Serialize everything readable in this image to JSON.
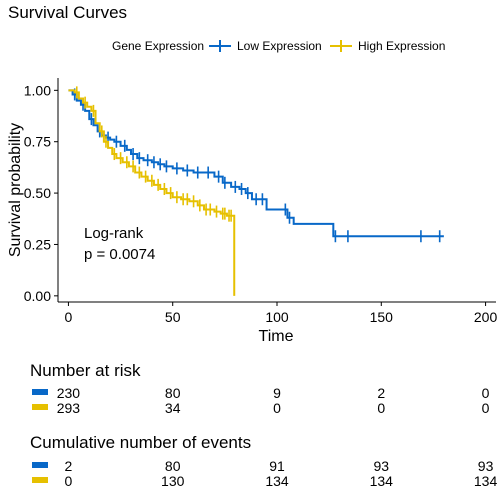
{
  "chart_data": {
    "type": "line",
    "title": "Survival Curves",
    "xlabel": "Time",
    "ylabel": "Survival probability",
    "xlim": [
      -5,
      205
    ],
    "ylim": [
      -0.03,
      1.06
    ],
    "x_ticks": [
      0,
      50,
      100,
      150,
      200
    ],
    "y_ticks": [
      0.0,
      0.25,
      0.5,
      0.75,
      1.0
    ],
    "x_tick_labels": [
      "0",
      "50",
      "100",
      "150",
      "200"
    ],
    "y_tick_labels": [
      "0.00",
      "0.25",
      "0.50",
      "0.75",
      "1.00"
    ],
    "grid": false,
    "legend_placement": "top",
    "legend_title": "Gene Expression",
    "annotation": [
      "Log-rank",
      "p = 0.0074"
    ],
    "series": [
      {
        "name": "Low Expression",
        "color": "#0868c8",
        "steps": [
          [
            0,
            1.0
          ],
          [
            2,
            0.98
          ],
          [
            4,
            0.95
          ],
          [
            6,
            0.93
          ],
          [
            8,
            0.9
          ],
          [
            10,
            0.86
          ],
          [
            12,
            0.83
          ],
          [
            14,
            0.8
          ],
          [
            16,
            0.78
          ],
          [
            18,
            0.77
          ],
          [
            20,
            0.76
          ],
          [
            22,
            0.75
          ],
          [
            25,
            0.73
          ],
          [
            28,
            0.71
          ],
          [
            30,
            0.69
          ],
          [
            33,
            0.67
          ],
          [
            36,
            0.66
          ],
          [
            40,
            0.65
          ],
          [
            43,
            0.64
          ],
          [
            46,
            0.63
          ],
          [
            50,
            0.62
          ],
          [
            55,
            0.61
          ],
          [
            60,
            0.6
          ],
          [
            65,
            0.6
          ],
          [
            70,
            0.58
          ],
          [
            74,
            0.55
          ],
          [
            78,
            0.53
          ],
          [
            82,
            0.52
          ],
          [
            85,
            0.5
          ],
          [
            88,
            0.47
          ],
          [
            95,
            0.42
          ],
          [
            105,
            0.38
          ],
          [
            108,
            0.35
          ],
          [
            127,
            0.29
          ],
          [
            180,
            0.29
          ]
        ],
        "censor_x": [
          3,
          7,
          11,
          15,
          19,
          23,
          27,
          31,
          34,
          38,
          41,
          44,
          47,
          52,
          57,
          62,
          67,
          72,
          75,
          80,
          83,
          86,
          90,
          93,
          104,
          106,
          128,
          134,
          169,
          178
        ]
      },
      {
        "name": "High Expression",
        "color": "#e6c000",
        "steps": [
          [
            0,
            1.0
          ],
          [
            3,
            0.99
          ],
          [
            5,
            0.96
          ],
          [
            7,
            0.94
          ],
          [
            9,
            0.92
          ],
          [
            11,
            0.9
          ],
          [
            13,
            0.84
          ],
          [
            15,
            0.8
          ],
          [
            17,
            0.75
          ],
          [
            19,
            0.72
          ],
          [
            21,
            0.69
          ],
          [
            23,
            0.67
          ],
          [
            26,
            0.65
          ],
          [
            29,
            0.63
          ],
          [
            32,
            0.6
          ],
          [
            35,
            0.58
          ],
          [
            38,
            0.56
          ],
          [
            41,
            0.54
          ],
          [
            44,
            0.52
          ],
          [
            47,
            0.5
          ],
          [
            50,
            0.48
          ],
          [
            54,
            0.47
          ],
          [
            58,
            0.46
          ],
          [
            62,
            0.44
          ],
          [
            65,
            0.42
          ],
          [
            70,
            0.41
          ],
          [
            73,
            0.4
          ],
          [
            76,
            0.39
          ],
          [
            79,
            0.39
          ],
          [
            79.5,
            0.0
          ]
        ],
        "censor_x": [
          4,
          8,
          12,
          16,
          18,
          22,
          25,
          28,
          31,
          34,
          37,
          40,
          43,
          46,
          49,
          52,
          55,
          57,
          60,
          63,
          66,
          68,
          71,
          74,
          75,
          77,
          78
        ]
      }
    ],
    "risk_table": {
      "title": "Number at risk",
      "times": [
        0,
        50,
        100,
        150,
        200
      ],
      "rows": [
        {
          "name": "Low Expression",
          "color": "#0868c8",
          "values": [
            "230",
            "80",
            "9",
            "2",
            "0"
          ]
        },
        {
          "name": "High Expression",
          "color": "#e6c000",
          "values": [
            "293",
            "34",
            "0",
            "0",
            "0"
          ]
        }
      ]
    },
    "events_table": {
      "title": "Cumulative number of events",
      "times": [
        0,
        50,
        100,
        150,
        200
      ],
      "rows": [
        {
          "name": "Low Expression",
          "color": "#0868c8",
          "values": [
            "2",
            "80",
            "91",
            "93",
            "93"
          ]
        },
        {
          "name": "High Expression",
          "color": "#e6c000",
          "values": [
            "0",
            "130",
            "134",
            "134",
            "134"
          ]
        }
      ]
    }
  }
}
